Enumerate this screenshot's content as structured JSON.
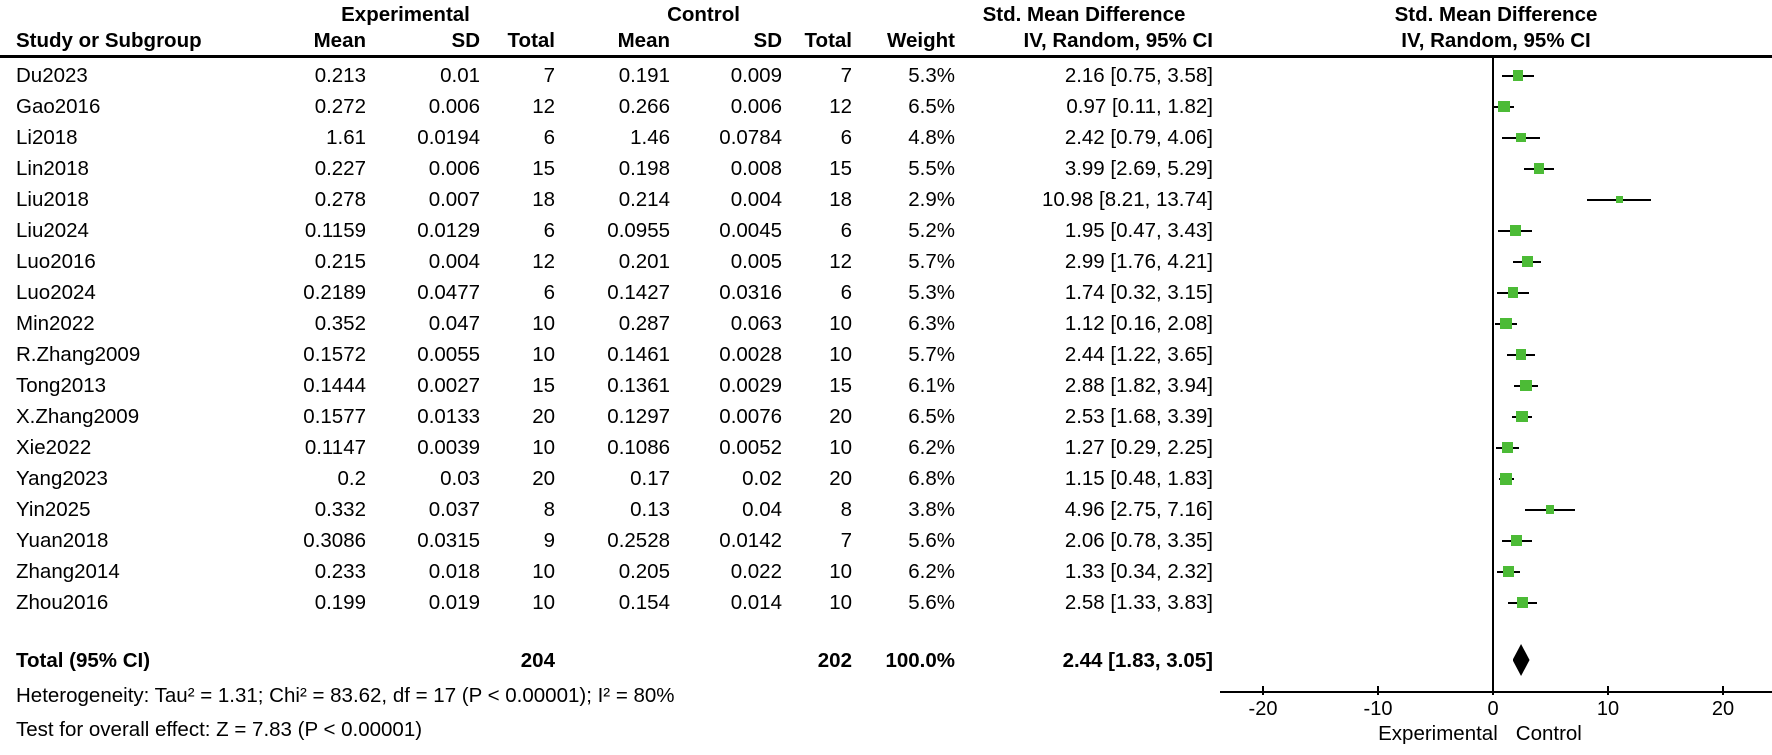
{
  "table": {
    "group_headers": {
      "experimental": "Experimental",
      "control": "Control",
      "smd": "Std. Mean Difference"
    },
    "col_headers": {
      "study": "Study or Subgroup",
      "mean_exp": "Mean",
      "sd_exp": "SD",
      "total_exp": "Total",
      "mean_ctl": "Mean",
      "sd_ctl": "SD",
      "total_ctl": "Total",
      "weight": "Weight",
      "ci": "IV, Random, 95% CI"
    },
    "total_row": {
      "label": "Total (95% CI)",
      "total_exp": "204",
      "total_ctl": "202",
      "weight": "100.0%",
      "ci": "2.44 [1.83, 3.05]"
    },
    "footnotes": {
      "heterogeneity": "Heterogeneity: Tau² = 1.31; Chi² = 83.62, df = 17 (P < 0.00001); I² = 80%",
      "overall_effect": "Test for overall effect: Z = 7.83 (P < 0.00001)"
    }
  },
  "plot_header": {
    "line1": "Std. Mean Difference",
    "line2": "IV, Random, 95% CI"
  },
  "axis": {
    "ticks": [
      -20,
      -10,
      0,
      10,
      20
    ],
    "caption_left": "Experimental",
    "caption_right": "Control"
  },
  "colors": {
    "marker_green": "#4cbb36",
    "diamond_black": "#000000"
  },
  "chart_data": {
    "type": "forest",
    "effect_measure": "Std. Mean Difference (IV, Random, 95% CI)",
    "x_axis": {
      "tick_values": [
        -20,
        -10,
        0,
        10,
        20
      ],
      "label_left": "Experimental",
      "label_right": "Control"
    },
    "studies": [
      {
        "name": "Du2023",
        "mean_exp": "0.213",
        "sd_exp": "0.01",
        "n_exp": "7",
        "mean_ctl": "0.191",
        "sd_ctl": "0.009",
        "n_ctl": "7",
        "weight": "5.3%",
        "ci_text": "2.16 [0.75, 3.58]",
        "est": 2.16,
        "lo": 0.75,
        "hi": 3.58,
        "weight_num": 5.3
      },
      {
        "name": "Gao2016",
        "mean_exp": "0.272",
        "sd_exp": "0.006",
        "n_exp": "12",
        "mean_ctl": "0.266",
        "sd_ctl": "0.006",
        "n_ctl": "12",
        "weight": "6.5%",
        "ci_text": "0.97 [0.11, 1.82]",
        "est": 0.97,
        "lo": 0.11,
        "hi": 1.82,
        "weight_num": 6.5
      },
      {
        "name": "Li2018",
        "mean_exp": "1.61",
        "sd_exp": "0.0194",
        "n_exp": "6",
        "mean_ctl": "1.46",
        "sd_ctl": "0.0784",
        "n_ctl": "6",
        "weight": "4.8%",
        "ci_text": "2.42 [0.79, 4.06]",
        "est": 2.42,
        "lo": 0.79,
        "hi": 4.06,
        "weight_num": 4.8
      },
      {
        "name": "Lin2018",
        "mean_exp": "0.227",
        "sd_exp": "0.006",
        "n_exp": "15",
        "mean_ctl": "0.198",
        "sd_ctl": "0.008",
        "n_ctl": "15",
        "weight": "5.5%",
        "ci_text": "3.99 [2.69, 5.29]",
        "est": 3.99,
        "lo": 2.69,
        "hi": 5.29,
        "weight_num": 5.5
      },
      {
        "name": "Liu2018",
        "mean_exp": "0.278",
        "sd_exp": "0.007",
        "n_exp": "18",
        "mean_ctl": "0.214",
        "sd_ctl": "0.004",
        "n_ctl": "18",
        "weight": "2.9%",
        "ci_text": "10.98 [8.21, 13.74]",
        "est": 10.98,
        "lo": 8.21,
        "hi": 13.74,
        "weight_num": 2.9
      },
      {
        "name": "Liu2024",
        "mean_exp": "0.1159",
        "sd_exp": "0.0129",
        "n_exp": "6",
        "mean_ctl": "0.0955",
        "sd_ctl": "0.0045",
        "n_ctl": "6",
        "weight": "5.2%",
        "ci_text": "1.95 [0.47, 3.43]",
        "est": 1.95,
        "lo": 0.47,
        "hi": 3.43,
        "weight_num": 5.2
      },
      {
        "name": "Luo2016",
        "mean_exp": "0.215",
        "sd_exp": "0.004",
        "n_exp": "12",
        "mean_ctl": "0.201",
        "sd_ctl": "0.005",
        "n_ctl": "12",
        "weight": "5.7%",
        "ci_text": "2.99 [1.76, 4.21]",
        "est": 2.99,
        "lo": 1.76,
        "hi": 4.21,
        "weight_num": 5.7
      },
      {
        "name": "Luo2024",
        "mean_exp": "0.2189",
        "sd_exp": "0.0477",
        "n_exp": "6",
        "mean_ctl": "0.1427",
        "sd_ctl": "0.0316",
        "n_ctl": "6",
        "weight": "5.3%",
        "ci_text": "1.74 [0.32, 3.15]",
        "est": 1.74,
        "lo": 0.32,
        "hi": 3.15,
        "weight_num": 5.3
      },
      {
        "name": "Min2022",
        "mean_exp": "0.352",
        "sd_exp": "0.047",
        "n_exp": "10",
        "mean_ctl": "0.287",
        "sd_ctl": "0.063",
        "n_ctl": "10",
        "weight": "6.3%",
        "ci_text": "1.12 [0.16, 2.08]",
        "est": 1.12,
        "lo": 0.16,
        "hi": 2.08,
        "weight_num": 6.3
      },
      {
        "name": "R.Zhang2009",
        "mean_exp": "0.1572",
        "sd_exp": "0.0055",
        "n_exp": "10",
        "mean_ctl": "0.1461",
        "sd_ctl": "0.0028",
        "n_ctl": "10",
        "weight": "5.7%",
        "ci_text": "2.44 [1.22, 3.65]",
        "est": 2.44,
        "lo": 1.22,
        "hi": 3.65,
        "weight_num": 5.7
      },
      {
        "name": "Tong2013",
        "mean_exp": "0.1444",
        "sd_exp": "0.0027",
        "n_exp": "15",
        "mean_ctl": "0.1361",
        "sd_ctl": "0.0029",
        "n_ctl": "15",
        "weight": "6.1%",
        "ci_text": "2.88 [1.82, 3.94]",
        "est": 2.88,
        "lo": 1.82,
        "hi": 3.94,
        "weight_num": 6.1
      },
      {
        "name": "X.Zhang2009",
        "mean_exp": "0.1577",
        "sd_exp": "0.0133",
        "n_exp": "20",
        "mean_ctl": "0.1297",
        "sd_ctl": "0.0076",
        "n_ctl": "20",
        "weight": "6.5%",
        "ci_text": "2.53 [1.68, 3.39]",
        "est": 2.53,
        "lo": 1.68,
        "hi": 3.39,
        "weight_num": 6.5
      },
      {
        "name": "Xie2022",
        "mean_exp": "0.1147",
        "sd_exp": "0.0039",
        "n_exp": "10",
        "mean_ctl": "0.1086",
        "sd_ctl": "0.0052",
        "n_ctl": "10",
        "weight": "6.2%",
        "ci_text": "1.27 [0.29, 2.25]",
        "est": 1.27,
        "lo": 0.29,
        "hi": 2.25,
        "weight_num": 6.2
      },
      {
        "name": "Yang2023",
        "mean_exp": "0.2",
        "sd_exp": "0.03",
        "n_exp": "20",
        "mean_ctl": "0.17",
        "sd_ctl": "0.02",
        "n_ctl": "20",
        "weight": "6.8%",
        "ci_text": "1.15 [0.48, 1.83]",
        "est": 1.15,
        "lo": 0.48,
        "hi": 1.83,
        "weight_num": 6.8
      },
      {
        "name": "Yin2025",
        "mean_exp": "0.332",
        "sd_exp": "0.037",
        "n_exp": "8",
        "mean_ctl": "0.13",
        "sd_ctl": "0.04",
        "n_ctl": "8",
        "weight": "3.8%",
        "ci_text": "4.96 [2.75, 7.16]",
        "est": 4.96,
        "lo": 2.75,
        "hi": 7.16,
        "weight_num": 3.8
      },
      {
        "name": "Yuan2018",
        "mean_exp": "0.3086",
        "sd_exp": "0.0315",
        "n_exp": "9",
        "mean_ctl": "0.2528",
        "sd_ctl": "0.0142",
        "n_ctl": "7",
        "weight": "5.6%",
        "ci_text": "2.06 [0.78, 3.35]",
        "est": 2.06,
        "lo": 0.78,
        "hi": 3.35,
        "weight_num": 5.6
      },
      {
        "name": "Zhang2014",
        "mean_exp": "0.233",
        "sd_exp": "0.018",
        "n_exp": "10",
        "mean_ctl": "0.205",
        "sd_ctl": "0.022",
        "n_ctl": "10",
        "weight": "6.2%",
        "ci_text": "1.33 [0.34, 2.32]",
        "est": 1.33,
        "lo": 0.34,
        "hi": 2.32,
        "weight_num": 6.2
      },
      {
        "name": "Zhou2016",
        "mean_exp": "0.199",
        "sd_exp": "0.019",
        "n_exp": "10",
        "mean_ctl": "0.154",
        "sd_ctl": "0.014",
        "n_ctl": "10",
        "weight": "5.6%",
        "ci_text": "2.58 [1.33, 3.83]",
        "est": 2.58,
        "lo": 1.33,
        "hi": 3.83,
        "weight_num": 5.6
      }
    ],
    "total": {
      "label": "Total (95% CI)",
      "n_exp": 204,
      "n_ctl": 202,
      "weight": "100.0%",
      "ci_text": "2.44 [1.83, 3.05]",
      "est": 2.44,
      "lo": 1.83,
      "hi": 3.05
    },
    "heterogeneity": "Tau² = 1.31; Chi² = 83.62, df = 17 (P < 0.00001); I² = 80%",
    "overall_effect": "Z = 7.83 (P < 0.00001)"
  }
}
